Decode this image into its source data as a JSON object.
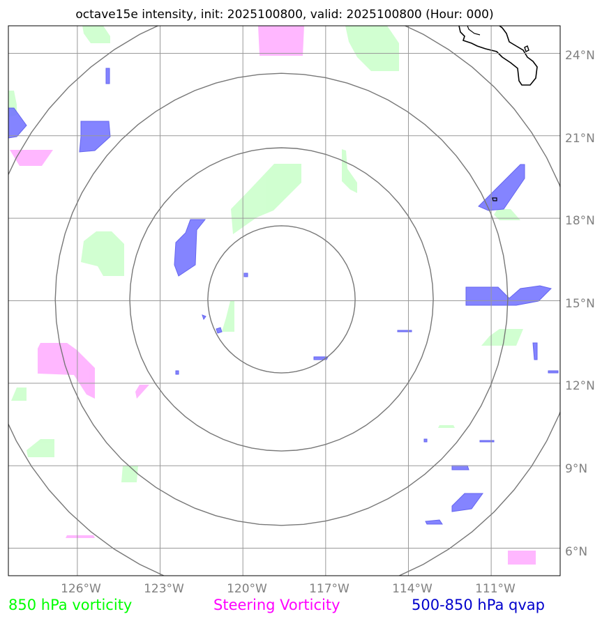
{
  "title": "octave15e intensity, init: 2025100800, valid: 2025100800 (Hour: 000)",
  "axes": {
    "lon_labels": [
      "126°W",
      "123°W",
      "120°W",
      "117°W",
      "114°W",
      "111°W"
    ],
    "lat_labels": [
      "24°N",
      "21°N",
      "18°N",
      "15°N",
      "12°N",
      "9°N",
      "6°N"
    ]
  },
  "legend": [
    {
      "label": "850 hPa vorticity",
      "color": "#00ff00"
    },
    {
      "label": "Steering Vorticity",
      "color": "#ff00ff"
    },
    {
      "label": "500-850 hPa qvap",
      "color": "#0000cc"
    }
  ],
  "colors": {
    "vorticity_fill": "#ccffcc",
    "steering_fill": "#ffaaff",
    "qvap_fill": "#7777ff",
    "qvap_edge": "#5555ee",
    "grid": "#999999",
    "range_rings": "#777777",
    "coastline": "#000000"
  },
  "chart_data": {
    "type": "map",
    "projection": "plate-carree",
    "lon_range": [
      -128.5,
      -108.5
    ],
    "lat_range": [
      5.0,
      25.0
    ],
    "center": {
      "lon": -118.6,
      "lat": 15.05
    },
    "meridians": [
      -126,
      -123,
      -120,
      -117,
      -114,
      -111
    ],
    "parallels": [
      24,
      21,
      18,
      15,
      12,
      9,
      6
    ],
    "range_rings_deg": [
      2.67,
      5.5,
      8.2,
      10.9
    ]
  }
}
